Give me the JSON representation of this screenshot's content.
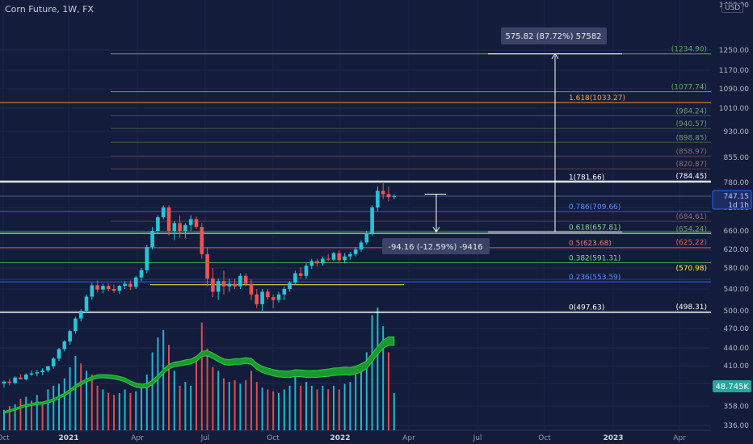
{
  "header": {
    "title": "Corn Future, 1W, FX",
    "currency": "USD"
  },
  "measure": {
    "up_label": "575.82 (87.72%) 57582",
    "down_label": "-94.16 (-12.59%) -9416"
  },
  "price_labels": {
    "last": "747.15",
    "countdown": "1d 1h",
    "volume": "48.745K"
  },
  "chart_data": {
    "type": "candlestick",
    "title": "Corn Future, 1W, FX",
    "xlabel": "",
    "ylabel": "",
    "price_axis": {
      "ticks": [
        1450.0,
        1250.0,
        1170.0,
        1090.0,
        1010.0,
        930.0,
        855.0,
        780.0,
        720.0,
        660.0,
        620.0,
        580.0,
        540.0,
        500.0,
        470.0,
        440.0,
        410.0,
        380.0,
        358.0,
        336.0
      ]
    },
    "time_axis": {
      "ticks": [
        "Oct",
        "2021",
        "Apr",
        "Jul",
        "Oct",
        "2022",
        "Apr",
        "Jul",
        "Oct",
        "2023",
        "Apr"
      ]
    },
    "level_lines": [
      {
        "label": "(1234.90)",
        "value": 1234.9,
        "color": "#4caf50"
      },
      {
        "label": "(1077.74)",
        "value": 1077.74,
        "color": "#4caf50"
      },
      {
        "label": "1.618(1033.27)",
        "value": 1033.27,
        "color": "#f7931a"
      },
      {
        "label": "(984.24)",
        "value": 984.24,
        "color": "#4a6b4a"
      },
      {
        "label": "(940.57)",
        "value": 940.57,
        "color": "#4a6b4a"
      },
      {
        "label": "(898.85)",
        "value": 898.85,
        "color": "#4a6b4a"
      },
      {
        "label": "(858.97)",
        "value": 858.97,
        "color": "#6b4a4a"
      },
      {
        "label": "(820.87)",
        "value": 820.87,
        "color": "#6b4a4a"
      },
      {
        "label": "1(781.66)",
        "value": 781.66,
        "color": "#ffffff"
      },
      {
        "label": "(784.45)",
        "value": 784.45,
        "color": "#ffffff"
      },
      {
        "label": "0.786(709.66)",
        "value": 709.66,
        "color": "#2962ff"
      },
      {
        "label": "(684.61)",
        "value": 684.61,
        "color": "#6b4a4a"
      },
      {
        "label": "0.618(657.81)",
        "value": 657.81,
        "color": "#4caf50"
      },
      {
        "label": "(654.24)",
        "value": 654.24,
        "color": "#4caf50"
      },
      {
        "label": "0.5(623.68)",
        "value": 623.68,
        "color": "#ef5350"
      },
      {
        "label": "(625.22)",
        "value": 625.22,
        "color": "#ef5350"
      },
      {
        "label": "0.382(591.31)",
        "value": 591.31,
        "color": "#4caf50"
      },
      {
        "label": "(570.98)",
        "value": 570.98,
        "color": "#ffeb3b"
      },
      {
        "label": "0.236(553.59)",
        "value": 553.59,
        "color": "#2962ff"
      },
      {
        "label": "0(497.63)",
        "value": 497.63,
        "color": "#ffffff"
      },
      {
        "label": "(498.31)",
        "value": 498.31,
        "color": "#ffffff"
      }
    ],
    "candles": [
      [
        380,
        385,
        376,
        383
      ],
      [
        383,
        388,
        378,
        381
      ],
      [
        381,
        392,
        379,
        390
      ],
      [
        390,
        396,
        387,
        387
      ],
      [
        387,
        397,
        385,
        395
      ],
      [
        395,
        402,
        393,
        397
      ],
      [
        397,
        403,
        392,
        399
      ],
      [
        399,
        406,
        394,
        402
      ],
      [
        402,
        410,
        399,
        409
      ],
      [
        409,
        425,
        405,
        422
      ],
      [
        422,
        440,
        418,
        438
      ],
      [
        438,
        452,
        434,
        450
      ],
      [
        450,
        468,
        445,
        466
      ],
      [
        466,
        490,
        462,
        487
      ],
      [
        487,
        503,
        482,
        500
      ],
      [
        500,
        530,
        496,
        526
      ],
      [
        526,
        552,
        520,
        547
      ],
      [
        547,
        556,
        533,
        539
      ],
      [
        539,
        550,
        532,
        546
      ],
      [
        546,
        551,
        536,
        540
      ],
      [
        540,
        548,
        533,
        537
      ],
      [
        537,
        548,
        531,
        546
      ],
      [
        546,
        555,
        540,
        550
      ],
      [
        550,
        556,
        538,
        544
      ],
      [
        544,
        565,
        540,
        562
      ],
      [
        562,
        580,
        555,
        576
      ],
      [
        576,
        630,
        570,
        625
      ],
      [
        625,
        670,
        620,
        660
      ],
      [
        660,
        700,
        655,
        695
      ],
      [
        695,
        725,
        690,
        720
      ],
      [
        720,
        725,
        650,
        660
      ],
      [
        660,
        685,
        640,
        680
      ],
      [
        680,
        700,
        645,
        660
      ],
      [
        660,
        680,
        645,
        675
      ],
      [
        675,
        700,
        660,
        690
      ],
      [
        690,
        697,
        665,
        670
      ],
      [
        670,
        680,
        600,
        610
      ],
      [
        610,
        625,
        545,
        560
      ],
      [
        560,
        580,
        525,
        535
      ],
      [
        535,
        560,
        520,
        555
      ],
      [
        555,
        575,
        530,
        545
      ],
      [
        545,
        560,
        535,
        550
      ],
      [
        550,
        560,
        540,
        545
      ],
      [
        545,
        570,
        540,
        565
      ],
      [
        565,
        570,
        545,
        550
      ],
      [
        550,
        558,
        520,
        530
      ],
      [
        530,
        540,
        505,
        512
      ],
      [
        512,
        540,
        500,
        535
      ],
      [
        535,
        540,
        520,
        525
      ],
      [
        525,
        530,
        505,
        520
      ],
      [
        520,
        535,
        515,
        530
      ],
      [
        530,
        545,
        520,
        540
      ],
      [
        540,
        555,
        535,
        552
      ],
      [
        552,
        575,
        548,
        570
      ],
      [
        570,
        582,
        560,
        565
      ],
      [
        565,
        590,
        560,
        585
      ],
      [
        585,
        600,
        578,
        595
      ],
      [
        595,
        600,
        583,
        590
      ],
      [
        590,
        605,
        585,
        600
      ],
      [
        600,
        610,
        595,
        598
      ],
      [
        598,
        615,
        595,
        612
      ],
      [
        612,
        618,
        590,
        597
      ],
      [
        597,
        612,
        590,
        605
      ],
      [
        605,
        615,
        598,
        610
      ],
      [
        610,
        625,
        605,
        620
      ],
      [
        620,
        640,
        615,
        635
      ],
      [
        635,
        660,
        630,
        655
      ],
      [
        655,
        725,
        650,
        720
      ],
      [
        720,
        770,
        710,
        760
      ],
      [
        760,
        782,
        740,
        752
      ],
      [
        752,
        770,
        735,
        745
      ],
      [
        745,
        752,
        740,
        747
      ]
    ],
    "volumes": [
      [
        0.55,
        1
      ],
      [
        0.65,
        0
      ],
      [
        0.7,
        1
      ],
      [
        0.85,
        0
      ],
      [
        0.9,
        1
      ],
      [
        0.8,
        0
      ],
      [
        0.95,
        1
      ],
      [
        0.75,
        0
      ],
      [
        1.1,
        1
      ],
      [
        1.2,
        1
      ],
      [
        1.25,
        1
      ],
      [
        1.4,
        1
      ],
      [
        1.7,
        1
      ],
      [
        2.0,
        1
      ],
      [
        1.8,
        0
      ],
      [
        1.6,
        1
      ],
      [
        1.5,
        0
      ],
      [
        1.2,
        0
      ],
      [
        1.1,
        1
      ],
      [
        1.0,
        0
      ],
      [
        0.95,
        0
      ],
      [
        1.0,
        1
      ],
      [
        1.1,
        1
      ],
      [
        1.0,
        0
      ],
      [
        1.05,
        1
      ],
      [
        1.2,
        1
      ],
      [
        1.5,
        1
      ],
      [
        2.1,
        1
      ],
      [
        2.5,
        1
      ],
      [
        2.7,
        1
      ],
      [
        2.3,
        0
      ],
      [
        1.6,
        1
      ],
      [
        1.2,
        0
      ],
      [
        1.3,
        1
      ],
      [
        1.2,
        1
      ],
      [
        1.9,
        0
      ],
      [
        2.9,
        0
      ],
      [
        2.2,
        0
      ],
      [
        1.7,
        0
      ],
      [
        1.6,
        1
      ],
      [
        1.4,
        0
      ],
      [
        1.3,
        1
      ],
      [
        1.35,
        0
      ],
      [
        1.25,
        1
      ],
      [
        1.35,
        0
      ],
      [
        1.6,
        0
      ],
      [
        1.3,
        0
      ],
      [
        1.15,
        1
      ],
      [
        1.1,
        0
      ],
      [
        1.05,
        0
      ],
      [
        1.0,
        1
      ],
      [
        1.1,
        1
      ],
      [
        1.2,
        1
      ],
      [
        1.5,
        1
      ],
      [
        1.2,
        0
      ],
      [
        1.3,
        1
      ],
      [
        1.2,
        1
      ],
      [
        1.1,
        0
      ],
      [
        1.2,
        1
      ],
      [
        1.1,
        0
      ],
      [
        1.2,
        1
      ],
      [
        1.1,
        0
      ],
      [
        1.25,
        1
      ],
      [
        1.3,
        1
      ],
      [
        1.5,
        1
      ],
      [
        1.8,
        1
      ],
      [
        2.1,
        1
      ],
      [
        3.1,
        1
      ],
      [
        3.3,
        1
      ],
      [
        2.8,
        1
      ],
      [
        2.1,
        0
      ],
      [
        1.0,
        1
      ]
    ]
  }
}
